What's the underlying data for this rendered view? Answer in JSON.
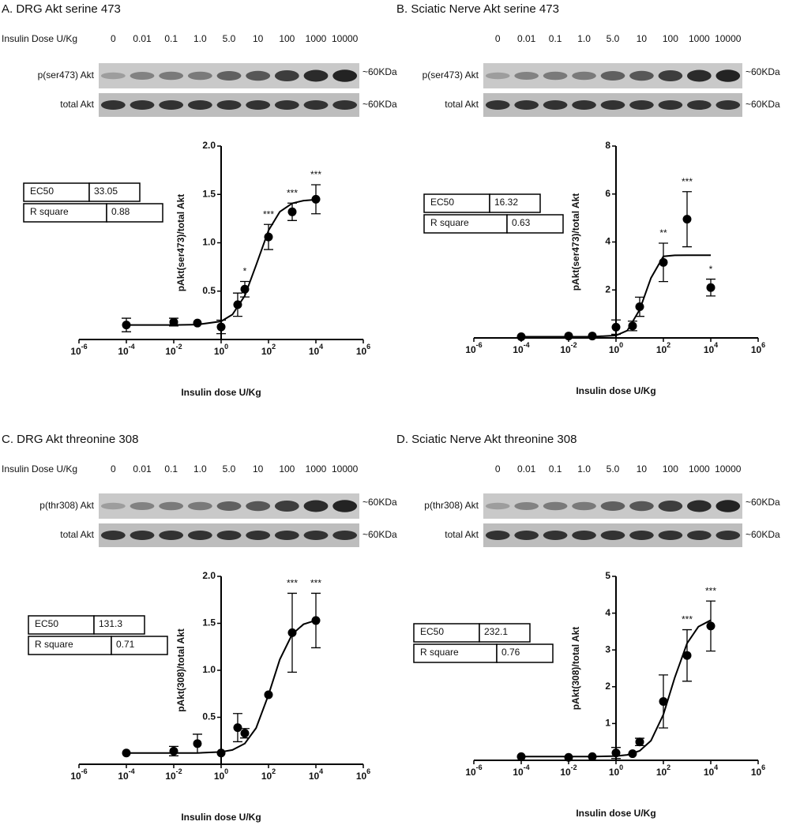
{
  "chart_data": [
    {
      "type": "scatter",
      "title": "A. DRG Akt serine 473",
      "blot": {
        "dose_label": "Insulin Dose U/Kg",
        "doses": [
          "0",
          "0.01",
          "0.1",
          "1.0",
          "5.0",
          "10",
          "100",
          "1000",
          "10000"
        ],
        "rows": [
          "p(ser473) Akt",
          "total Akt"
        ],
        "size_labels": [
          "~60KDa",
          "~60KDa"
        ]
      },
      "stats": [
        {
          "label": "EC50",
          "value": 33.05
        },
        {
          "label": "R square",
          "value": 0.88
        }
      ],
      "x_label": "Insulin dose U/Kg",
      "y_label": "pAkt(ser473)/total Akt",
      "log_x": true,
      "y_axis_crosses": 1,
      "xlim": [
        1e-06,
        1000000
      ],
      "xticks": [
        {
          "value": 1e-06,
          "label": "10-6"
        },
        {
          "value": 0.0001,
          "label": "10-4"
        },
        {
          "value": 0.01,
          "label": "10-2"
        },
        {
          "value": 1,
          "label": "100"
        },
        {
          "value": 100,
          "label": "102"
        },
        {
          "value": 10000,
          "label": "104"
        },
        {
          "value": 1000000,
          "label": "106"
        }
      ],
      "ylim": [
        0,
        2
      ],
      "yticks": [
        0.5,
        {
          "value": 1,
          "label": "1.0"
        },
        1.5,
        {
          "value": 2,
          "label": "2.0"
        }
      ],
      "series": [
        {
          "type": "scatter",
          "color": "#000000",
          "x": [
            0.0001,
            0.01,
            0.1,
            1,
            5,
            10,
            100,
            1000,
            10000
          ],
          "values": [
            0.15,
            0.18,
            0.17,
            0.13,
            0.36,
            0.52,
            1.06,
            1.32,
            1.45
          ],
          "errors": [
            0.07,
            0.04,
            null,
            0.07,
            0.12,
            0.08,
            0.13,
            0.09,
            0.15
          ],
          "significance": [
            null,
            null,
            null,
            null,
            null,
            "*",
            "***",
            "***",
            "***"
          ]
        },
        {
          "type": "line",
          "color": "#000000",
          "x": [
            0.0001,
            0.01,
            0.1,
            1,
            3,
            10,
            30,
            100,
            300,
            1000,
            3000,
            10000
          ],
          "values": [
            0.15,
            0.15,
            0.154,
            0.188,
            0.258,
            0.452,
            0.769,
            1.127,
            1.321,
            1.408,
            1.436,
            1.446
          ]
        }
      ]
    },
    {
      "type": "scatter",
      "title": "B. Sciatic Nerve Akt serine 473",
      "blot": {
        "doses": [
          "0",
          "0.01",
          "0.1",
          "1.0",
          "5.0",
          "10",
          "100",
          "1000",
          "10000"
        ],
        "rows": [
          "p(ser473) Akt",
          "total Akt"
        ],
        "size_labels": [
          "~60KDa",
          "~60KDa"
        ]
      },
      "stats": [
        {
          "label": "EC50",
          "value": 16.32
        },
        {
          "label": "R square",
          "value": 0.63
        }
      ],
      "x_label": "Insulin dose U/Kg",
      "y_label": "pAkt(ser473)/total Akt",
      "log_x": true,
      "y_axis_crosses": 1,
      "xlim": [
        1e-06,
        1000000
      ],
      "xticks": [
        {
          "value": 1e-06,
          "label": "10-6"
        },
        {
          "value": 0.0001,
          "label": "10-4"
        },
        {
          "value": 0.01,
          "label": "10-2"
        },
        {
          "value": 1,
          "label": "100"
        },
        {
          "value": 100,
          "label": "102"
        },
        {
          "value": 10000,
          "label": "104"
        },
        {
          "value": 1000000,
          "label": "106"
        }
      ],
      "ylim": [
        0,
        8
      ],
      "yticks": [
        2,
        4,
        6,
        8
      ],
      "series": [
        {
          "type": "scatter",
          "color": "#000000",
          "x": [
            0.0001,
            0.01,
            0.1,
            1,
            5,
            10,
            100,
            1000,
            10000
          ],
          "values": [
            0.05,
            0.08,
            0.08,
            0.45,
            0.5,
            1.3,
            3.15,
            4.95,
            2.1
          ],
          "errors": [
            null,
            null,
            null,
            0.3,
            0.2,
            0.4,
            0.8,
            1.15,
            0.35
          ],
          "significance": [
            null,
            null,
            null,
            null,
            null,
            null,
            "**",
            "***",
            "*"
          ]
        },
        {
          "type": "line",
          "color": "#000000",
          "x": [
            0.0001,
            0.01,
            0.1,
            1,
            3,
            10,
            30,
            100,
            300,
            1000,
            3000,
            10000
          ],
          "values": [
            0.05,
            0.05,
            0.05,
            0.102,
            0.305,
            1.18,
            2.5,
            3.4,
            3.445,
            3.45,
            3.45,
            3.45
          ]
        }
      ]
    },
    {
      "type": "scatter",
      "title": "C. DRG Akt threonine 308",
      "blot": {
        "dose_label": "Insulin Dose U/Kg",
        "doses": [
          "0",
          "0.01",
          "0.1",
          "1.0",
          "5.0",
          "10",
          "100",
          "1000",
          "10000"
        ],
        "rows": [
          "p(thr308) Akt",
          "total Akt"
        ],
        "size_labels": [
          "~60KDa",
          "~60KDa"
        ]
      },
      "stats": [
        {
          "label": "EC50",
          "value": 131.3
        },
        {
          "label": "R square",
          "value": 0.71
        }
      ],
      "x_label": "Insulin dose U/Kg",
      "y_label": "pAkt(308)/total Akt",
      "log_x": true,
      "y_axis_crosses": 1,
      "xlim": [
        1e-06,
        1000000
      ],
      "xticks": [
        {
          "value": 1e-06,
          "label": "10-6"
        },
        {
          "value": 0.0001,
          "label": "10-4"
        },
        {
          "value": 0.01,
          "label": "10-2"
        },
        {
          "value": 1,
          "label": "100"
        },
        {
          "value": 100,
          "label": "102"
        },
        {
          "value": 10000,
          "label": "104"
        },
        {
          "value": 1000000,
          "label": "106"
        }
      ],
      "ylim": [
        0,
        2
      ],
      "yticks": [
        0.5,
        {
          "value": 1,
          "label": "1.0"
        },
        1.5,
        {
          "value": 2,
          "label": "2.0"
        }
      ],
      "series": [
        {
          "type": "scatter",
          "color": "#000000",
          "x": [
            0.0001,
            0.01,
            0.1,
            1,
            5,
            10,
            100,
            1000,
            10000
          ],
          "values": [
            0.12,
            0.14,
            0.22,
            0.12,
            0.39,
            0.33,
            0.74,
            1.4,
            1.53
          ],
          "errors": [
            null,
            0.05,
            0.1,
            null,
            0.15,
            0.05,
            null,
            0.42,
            0.29
          ],
          "significance": [
            null,
            null,
            null,
            null,
            null,
            null,
            null,
            "***",
            "***"
          ]
        },
        {
          "type": "line",
          "color": "#000000",
          "x": [
            0.0001,
            0.01,
            0.1,
            1,
            3,
            10,
            30,
            100,
            300,
            1000,
            3000,
            10000
          ],
          "values": [
            0.12,
            0.12,
            0.12,
            0.131,
            0.152,
            0.221,
            0.386,
            0.739,
            1.115,
            1.384,
            1.49,
            1.532
          ]
        }
      ]
    },
    {
      "type": "scatter",
      "title": "D. Sciatic Nerve Akt threonine 308",
      "blot": {
        "doses": [
          "0",
          "0.01",
          "0.1",
          "1.0",
          "5.0",
          "10",
          "100",
          "1000",
          "10000"
        ],
        "rows": [
          "p(thr308) Akt",
          "total Akt"
        ],
        "size_labels": [
          "~60KDa",
          "~60KDa"
        ]
      },
      "stats": [
        {
          "label": "EC50",
          "value": 232.1
        },
        {
          "label": "R square",
          "value": 0.76
        }
      ],
      "x_label": "Insulin dose U/Kg",
      "y_label": "pAkt(308)/total Akt",
      "log_x": true,
      "y_axis_crosses": 1,
      "xlim": [
        1e-06,
        1000000
      ],
      "xticks": [
        {
          "value": 1e-06,
          "label": "10-6"
        },
        {
          "value": 0.0001,
          "label": "10-4"
        },
        {
          "value": 0.01,
          "label": "10-2"
        },
        {
          "value": 1,
          "label": "100"
        },
        {
          "value": 100,
          "label": "102"
        },
        {
          "value": 10000,
          "label": "104"
        },
        {
          "value": 1000000,
          "label": "106"
        }
      ],
      "ylim": [
        0,
        5
      ],
      "yticks": [
        1,
        2,
        3,
        4,
        5
      ],
      "series": [
        {
          "type": "scatter",
          "color": "#000000",
          "x": [
            0.0001,
            0.01,
            0.1,
            1,
            5,
            10,
            100,
            1000,
            10000
          ],
          "values": [
            0.1,
            0.08,
            0.1,
            0.2,
            0.18,
            0.5,
            1.6,
            2.85,
            3.65
          ],
          "errors": [
            null,
            null,
            null,
            0.15,
            null,
            0.1,
            0.72,
            0.7,
            0.68
          ],
          "significance": [
            null,
            null,
            null,
            null,
            null,
            null,
            null,
            "***",
            "***"
          ]
        },
        {
          "type": "line",
          "color": "#000000",
          "x": [
            0.0001,
            0.01,
            0.1,
            1,
            3,
            10,
            30,
            100,
            300,
            1000,
            3000,
            10000
          ],
          "values": [
            0.1,
            0.1,
            0.1,
            0.116,
            0.148,
            0.257,
            0.535,
            1.245,
            2.24,
            3.18,
            3.63,
            3.81
          ]
        }
      ]
    }
  ]
}
